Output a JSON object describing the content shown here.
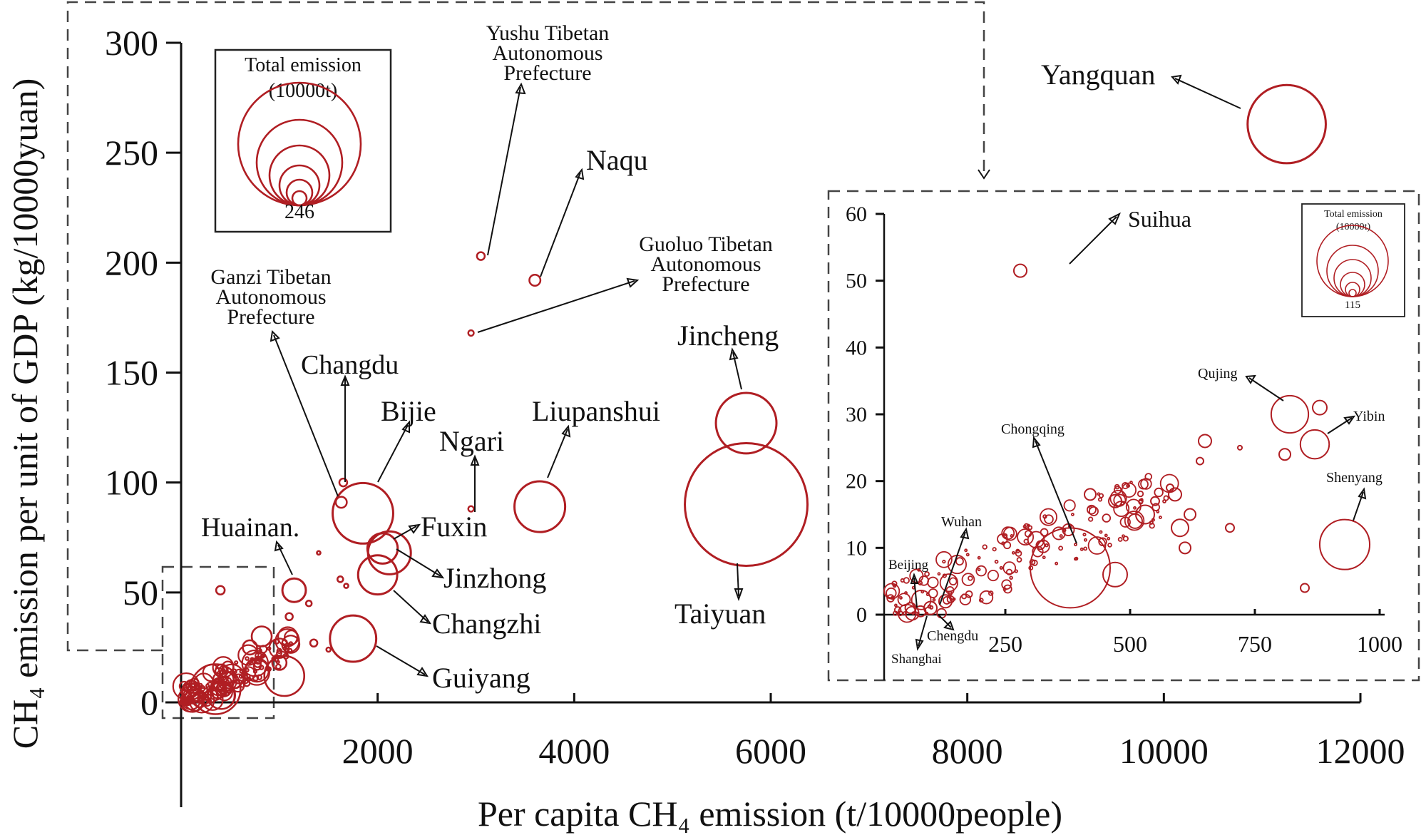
{
  "chart_data": [
    {
      "type": "scatter",
      "subtype": "bubble",
      "xlabel": "Per capita CH₄ emission (t/10000people)",
      "ylabel": "CH₄ emission per unit of GDP (kg/10000yuan)",
      "xlim": [
        0,
        12000
      ],
      "ylim": [
        0,
        300
      ],
      "xticks": [
        "2000",
        "4000",
        "6000",
        "8000",
        "10000",
        "12000"
      ],
      "yticks": [
        "0",
        "50",
        "100",
        "150",
        "200",
        "250",
        "300"
      ],
      "bubble_color": "#b01e23",
      "size_legend": {
        "title_line1": "Total emission",
        "title_line2": "(10000t)",
        "max_label": "246"
      },
      "labeled_points": [
        {
          "name": "Yangquan",
          "x": 11250,
          "y": 263,
          "size": 100
        },
        {
          "name": "Taiyuan",
          "x": 5750,
          "y": 90,
          "size": 246
        },
        {
          "name": "Jincheng",
          "x": 5750,
          "y": 127,
          "size": 60
        },
        {
          "name": "Liupanshui",
          "x": 3650,
          "y": 89,
          "size": 42
        },
        {
          "name": "Bijie",
          "x": 1850,
          "y": 86,
          "size": 60
        },
        {
          "name": "Fuxin",
          "x": 2050,
          "y": 70,
          "size": 15
        },
        {
          "name": "Jinzhong",
          "x": 2120,
          "y": 68,
          "size": 30
        },
        {
          "name": "Changzhi",
          "x": 2000,
          "y": 58,
          "size": 25
        },
        {
          "name": "Guiyang",
          "x": 1750,
          "y": 29,
          "size": 35
        },
        {
          "name": "Huainan",
          "x": 1150,
          "y": 51,
          "size": 9
        },
        {
          "name": "Changdu",
          "x": 1630,
          "y": 91,
          "size": 2
        },
        {
          "name": "Naqu",
          "x": 3600,
          "y": 192,
          "size": 2
        },
        {
          "name": "Yushu Tibetan Autonomous Prefecture",
          "x": 3050,
          "y": 203,
          "size": 1
        },
        {
          "name": "Guoluo Tibetan Autonomous Prefecture",
          "x": 2950,
          "y": 168,
          "size": 0.5
        },
        {
          "name": "Ngari",
          "x": 2950,
          "y": 88,
          "size": 0.5
        },
        {
          "name": "Ganzi Tibetan Autonomous Prefecture",
          "x": 1650,
          "y": 100,
          "size": 1
        }
      ],
      "annotations": {
        "yangquan": "Yangquan",
        "yushu": [
          "Yushu Tibetan",
          "Autonomous",
          "Prefecture"
        ],
        "naqu": "Naqu",
        "guoluo": [
          "Guoluo Tibetan",
          "Autonomous",
          "Prefecture"
        ],
        "ganzi": [
          "Ganzi Tibetan",
          "Autonomous",
          "Prefecture"
        ],
        "changdu": "Changdu",
        "bijie": "Bijie",
        "ngari": "Ngari",
        "liupanshui": "Liupanshui",
        "jincheng": "Jincheng",
        "huainan": "Huainan.",
        "fuxin": "Fuxin",
        "jinzhong": "Jinzhong",
        "changzhi": "Changzhi",
        "guiyang": "Guiyang",
        "taiyuan": "Taiyuan"
      }
    },
    {
      "type": "scatter",
      "subtype": "bubble",
      "role": "inset",
      "xlim": [
        0,
        1000
      ],
      "ylim": [
        -5,
        60
      ],
      "xticks": [
        "250",
        "500",
        "750",
        "1000"
      ],
      "yticks": [
        "0",
        "10",
        "20",
        "30",
        "40",
        "50",
        "60"
      ],
      "size_legend": {
        "title_line1": "Total emission",
        "title_line2": "(10000t)",
        "max_label": "115"
      },
      "labeled_points": [
        {
          "name": "Suihua",
          "x": 280,
          "y": 51.5,
          "size": 3
        },
        {
          "name": "Qujing",
          "x": 820,
          "y": 30,
          "size": 25
        },
        {
          "name": "Yibin",
          "x": 870,
          "y": 25.5,
          "size": 15
        },
        {
          "name": "Shenyang",
          "x": 930,
          "y": 10.5,
          "size": 45
        },
        {
          "name": "Chongqing",
          "x": 380,
          "y": 7,
          "size": 115
        },
        {
          "name": "Wuhan",
          "x": 130,
          "y": 2,
          "size": 3
        },
        {
          "name": "Beijing",
          "x": 60,
          "y": 1,
          "size": 2
        },
        {
          "name": "Chengdu",
          "x": 100,
          "y": 1,
          "size": 3
        },
        {
          "name": "Shanghai",
          "x": 80,
          "y": 0.5,
          "size": 2
        }
      ],
      "annotations": {
        "suihua": "Suihua",
        "qujing": "Qujing",
        "yibin": "Yibin",
        "shenyang": "Shenyang",
        "chongqing": "Chongqing",
        "wuhan": "Wuhan",
        "beijing": "Beijing",
        "chengdu": "Chengdu",
        "shanghai": "Shanghai"
      }
    }
  ]
}
